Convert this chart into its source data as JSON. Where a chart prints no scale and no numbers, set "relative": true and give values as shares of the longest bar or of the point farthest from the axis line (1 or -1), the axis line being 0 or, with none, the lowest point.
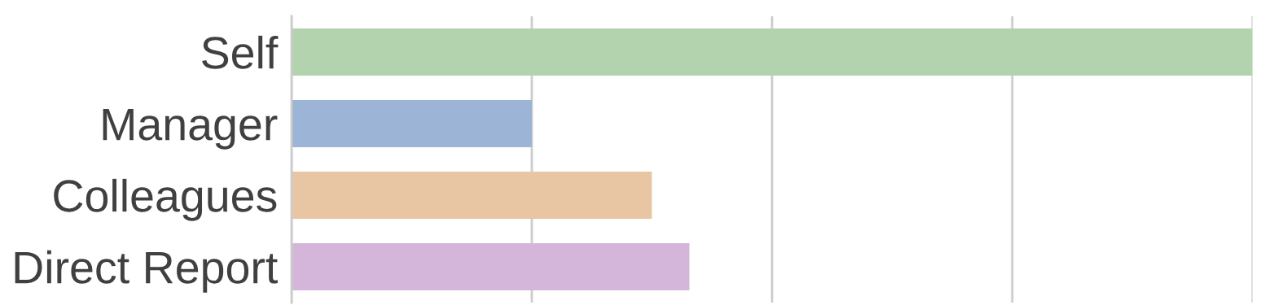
{
  "chart_data": {
    "type": "bar",
    "orientation": "horizontal",
    "relative": true,
    "categories": [
      "Self",
      "Manager",
      "Colleagues",
      "Direct Report"
    ],
    "values": [
      1,
      0.25,
      0.375,
      0.414
    ],
    "colors": [
      "#b3d3ae",
      "#9cb4d6",
      "#e8c6a4",
      "#d4b6da"
    ],
    "grid": "x",
    "legend": false
  }
}
